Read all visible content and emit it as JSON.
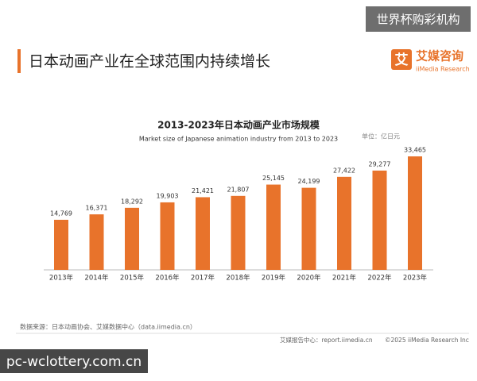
{
  "watermark": "世界杯购彩机构",
  "header": {
    "title": "日本动画产业在全球范围内持续增长",
    "logo_cn": "艾媒咨询",
    "logo_en": "iiMedia Research",
    "logo_icon": "艾"
  },
  "chart_data": {
    "type": "bar",
    "title": "2013-2023年日本动画产业市场规模",
    "subtitle": "Market size of Japanese animation industry from 2013 to 2023",
    "unit": "单位：亿日元",
    "categories": [
      "2013年",
      "2014年",
      "2015年",
      "2016年",
      "2017年",
      "2018年",
      "2019年",
      "2020年",
      "2021年",
      "2022年",
      "2023年"
    ],
    "values": [
      14769,
      16371,
      18292,
      19903,
      21421,
      21807,
      25145,
      24199,
      27422,
      29277,
      33465
    ],
    "value_labels": [
      "14,769",
      "16,371",
      "18,292",
      "19,903",
      "21,421",
      "21,807",
      "25,145",
      "24,199",
      "27,422",
      "29,277",
      "33,465"
    ],
    "color": "#e8732b",
    "source": "数据来源：日本动画协会、艾媒数据中心（data.iimedia.cn）"
  },
  "footer": {
    "report": "艾媒报告中心：report.iimedia.cn",
    "copyright": "©2025  iiMedia Research  Inc"
  },
  "overlay": "pc-wclottery.com.cn"
}
